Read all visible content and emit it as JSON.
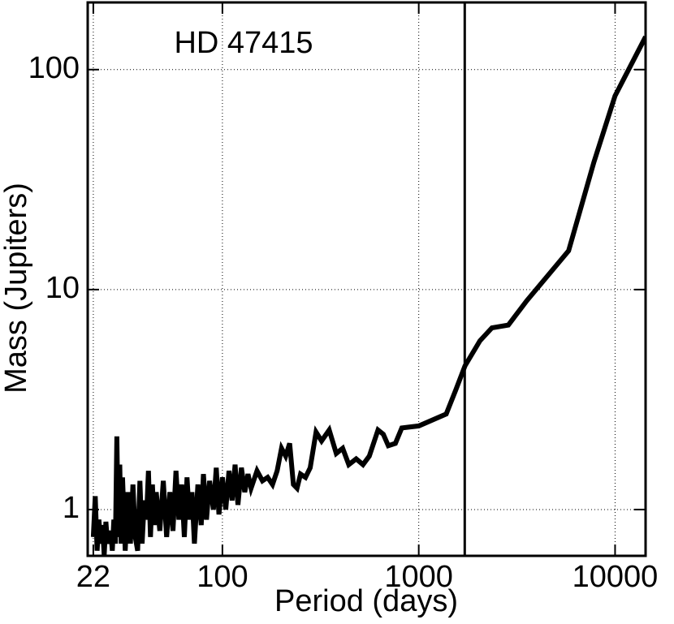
{
  "chart_data": {
    "type": "line",
    "title": "HD 47415",
    "xlabel": "Period (days)",
    "ylabel": "Mass (Jupiters)",
    "x": [
      22,
      22.5,
      23,
      23.5,
      24,
      24.5,
      25,
      25.5,
      26,
      27,
      27.5,
      28,
      28.5,
      29,
      29.5,
      30,
      30.5,
      31,
      32,
      33,
      34,
      35,
      36,
      37,
      38,
      39,
      40,
      41,
      42,
      43,
      44,
      45,
      46,
      48,
      50,
      52,
      54,
      56,
      58,
      60,
      62,
      64,
      66,
      68,
      70,
      72,
      75,
      78,
      80,
      83,
      86,
      90,
      93,
      96,
      100,
      104,
      108,
      112,
      116,
      120,
      125,
      130,
      135,
      140,
      150,
      160,
      170,
      180,
      190,
      200,
      210,
      220,
      230,
      240,
      250,
      265,
      280,
      300,
      320,
      350,
      380,
      410,
      440,
      480,
      520,
      560,
      620,
      660,
      700,
      760,
      820,
      1000,
      1380,
      1545,
      1720,
      2050,
      2360,
      2860,
      3550,
      5800,
      7800,
      10000,
      14300
    ],
    "series": [
      {
        "name": "HD 47415",
        "color": "#000000",
        "values": [
          0.75,
          1.15,
          0.65,
          0.9,
          0.7,
          0.85,
          0.62,
          0.88,
          0.7,
          0.8,
          0.65,
          0.9,
          0.7,
          2.15,
          0.75,
          1.6,
          0.7,
          1.4,
          0.65,
          1.2,
          0.7,
          1.3,
          0.75,
          0.65,
          1.35,
          0.7,
          1.1,
          0.9,
          1.5,
          0.75,
          1.3,
          0.85,
          1.2,
          0.8,
          1.35,
          0.75,
          1.2,
          0.8,
          1.5,
          0.9,
          1.3,
          0.75,
          1.4,
          0.9,
          1.2,
          0.7,
          1.3,
          0.85,
          1.45,
          0.9,
          1.35,
          1.0,
          1.55,
          0.95,
          1.4,
          1.0,
          1.5,
          1.1,
          1.6,
          1.05,
          1.55,
          1.2,
          1.45,
          1.25,
          1.5,
          1.35,
          1.4,
          1.3,
          1.5,
          1.9,
          1.75,
          2.0,
          1.3,
          1.25,
          1.45,
          1.4,
          1.55,
          2.25,
          2.05,
          2.3,
          1.8,
          1.9,
          1.6,
          1.7,
          1.6,
          1.75,
          2.3,
          2.2,
          1.95,
          2.0,
          2.35,
          2.4,
          2.72,
          3.5,
          4.5,
          5.85,
          6.7,
          6.9,
          8.9,
          15,
          38,
          76,
          141
        ]
      }
    ],
    "vline": 1715,
    "xlim": [
      20.6,
      14300
    ],
    "ylim": [
      0.616,
      202
    ],
    "xticks": [
      22,
      100,
      1000,
      10000
    ],
    "yticks": [
      1,
      10,
      100
    ],
    "xscale": "log",
    "yscale": "log",
    "grid": true
  }
}
